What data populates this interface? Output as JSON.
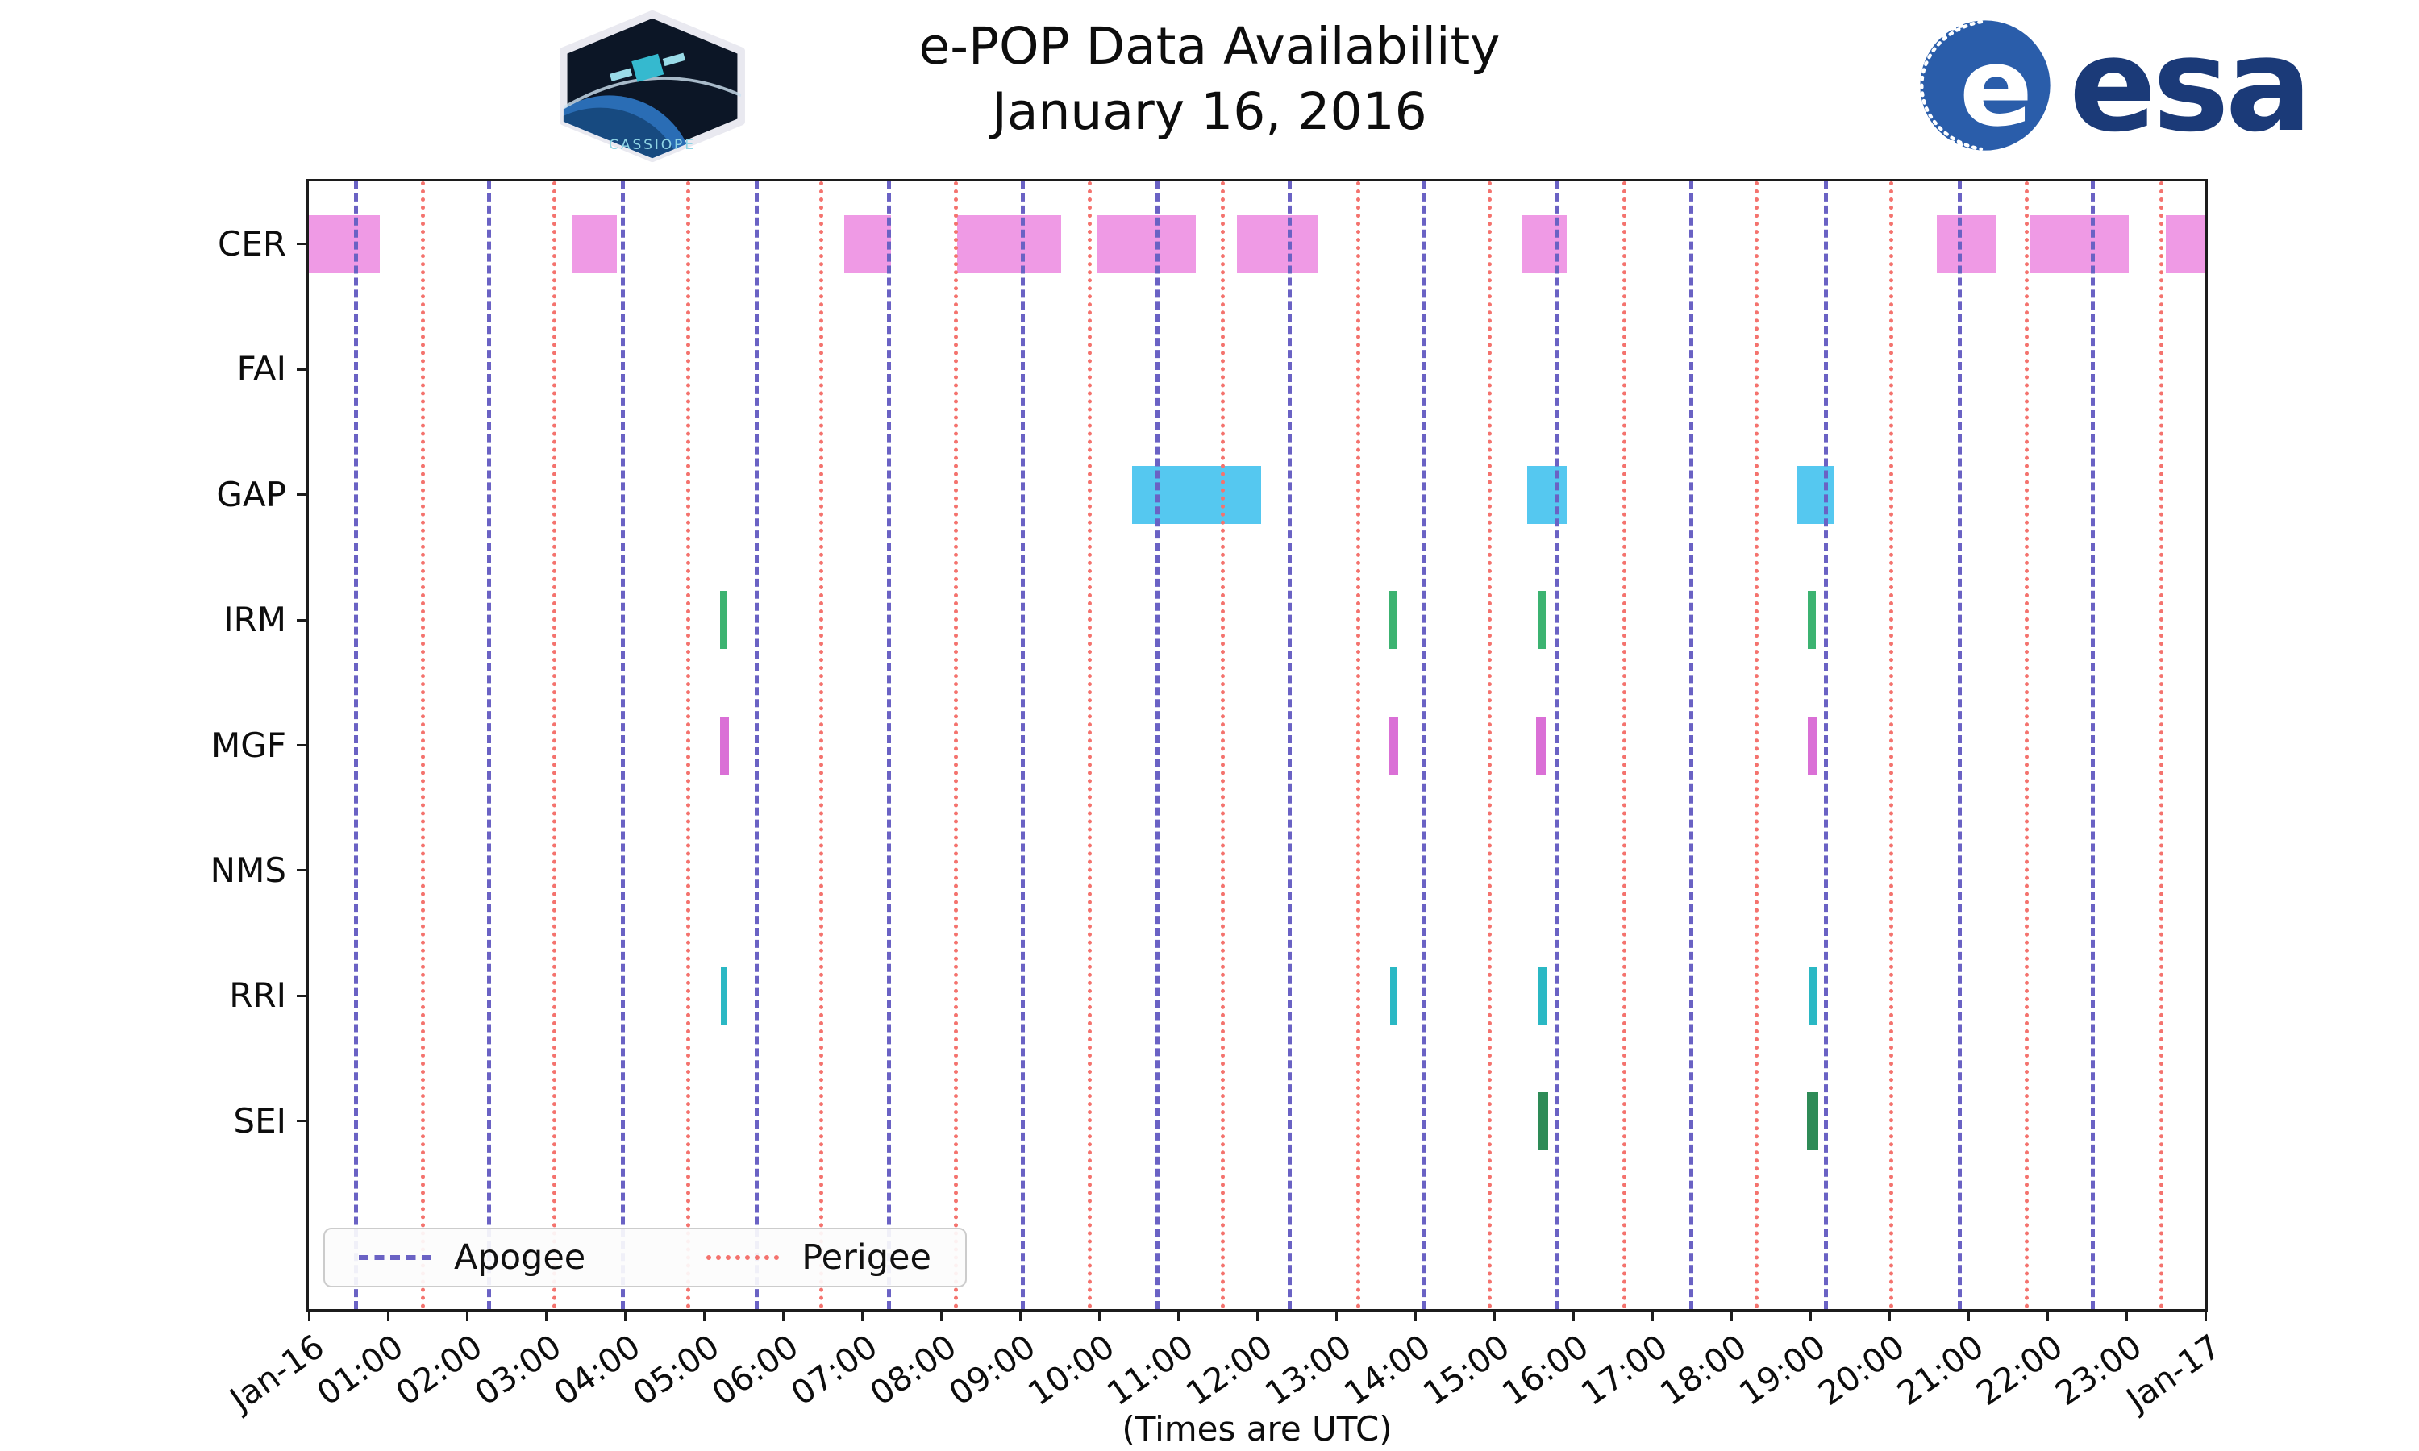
{
  "header": {
    "title": "e-POP Data Availability",
    "subtitle": "January 16, 2016"
  },
  "logos": {
    "cassiope_label": "CASSIOPE",
    "esa_wordmark": "esa"
  },
  "legend": {
    "apogee_label": "Apogee",
    "perigee_label": "Perigee"
  },
  "axis_note": "(Times are UTC)",
  "chart_data": {
    "type": "availability-timeline",
    "title": "e-POP Data Availability",
    "subtitle": "January 16, 2016",
    "x_axis": {
      "start_hour": 0,
      "end_hour": 24,
      "tick_labels": [
        "Jan-16",
        "01:00",
        "02:00",
        "03:00",
        "04:00",
        "05:00",
        "06:00",
        "07:00",
        "08:00",
        "09:00",
        "10:00",
        "11:00",
        "12:00",
        "13:00",
        "14:00",
        "15:00",
        "16:00",
        "17:00",
        "18:00",
        "19:00",
        "20:00",
        "21:00",
        "22:00",
        "23:00",
        "Jan-17"
      ],
      "note": "(Times are UTC)"
    },
    "y_categories": [
      "CER",
      "FAI",
      "GAP",
      "IRM",
      "MGF",
      "NMS",
      "RRI",
      "SEI"
    ],
    "row_slots": 9,
    "styles": {
      "apogee_color": "#6a62c4",
      "perigee_color": "#f4736e",
      "axis_color": "#1c1c1c",
      "esa_blue": "#1b3a78"
    },
    "apogee_hours": [
      0.57,
      2.25,
      3.95,
      5.64,
      7.32,
      9.01,
      10.71,
      12.39,
      14.09,
      15.77,
      17.47,
      19.17,
      20.87,
      22.55
    ],
    "perigee_hours": [
      1.42,
      3.08,
      4.78,
      6.46,
      8.16,
      9.86,
      11.54,
      13.26,
      14.92,
      16.62,
      18.3,
      20.0,
      21.71,
      23.42
    ],
    "series": [
      {
        "name": "CER",
        "color": "#ef9ae5",
        "intervals": [
          [
            0.0,
            0.9
          ],
          [
            3.33,
            3.9
          ],
          [
            6.78,
            7.37
          ],
          [
            8.2,
            9.52
          ],
          [
            9.97,
            11.22
          ],
          [
            11.74,
            12.78
          ],
          [
            15.35,
            15.92
          ],
          [
            20.6,
            21.35
          ],
          [
            21.78,
            23.03
          ],
          [
            23.5,
            24.0
          ]
        ]
      },
      {
        "name": "FAI",
        "color": "#a0d8a0",
        "intervals": []
      },
      {
        "name": "GAP",
        "color": "#55c8f0",
        "intervals": [
          [
            10.42,
            12.05
          ],
          [
            15.42,
            15.92
          ],
          [
            18.83,
            19.3
          ]
        ]
      },
      {
        "name": "IRM",
        "color": "#3cb371",
        "intervals": [
          [
            5.2,
            5.3
          ],
          [
            13.67,
            13.77
          ],
          [
            15.55,
            15.65
          ],
          [
            18.97,
            19.07
          ]
        ]
      },
      {
        "name": "MGF",
        "color": "#da70d6",
        "intervals": [
          [
            5.2,
            5.32
          ],
          [
            13.67,
            13.79
          ],
          [
            15.53,
            15.65
          ],
          [
            18.97,
            19.09
          ]
        ]
      },
      {
        "name": "NMS",
        "color": "#999999",
        "intervals": []
      },
      {
        "name": "RRI",
        "color": "#2bb8c4",
        "intervals": [
          [
            5.21,
            5.29
          ],
          [
            13.68,
            13.76
          ],
          [
            15.56,
            15.66
          ],
          [
            18.98,
            19.08
          ]
        ]
      },
      {
        "name": "SEI",
        "color": "#2e8b57",
        "intervals": [
          [
            15.55,
            15.68
          ],
          [
            18.96,
            19.1
          ]
        ]
      }
    ]
  }
}
